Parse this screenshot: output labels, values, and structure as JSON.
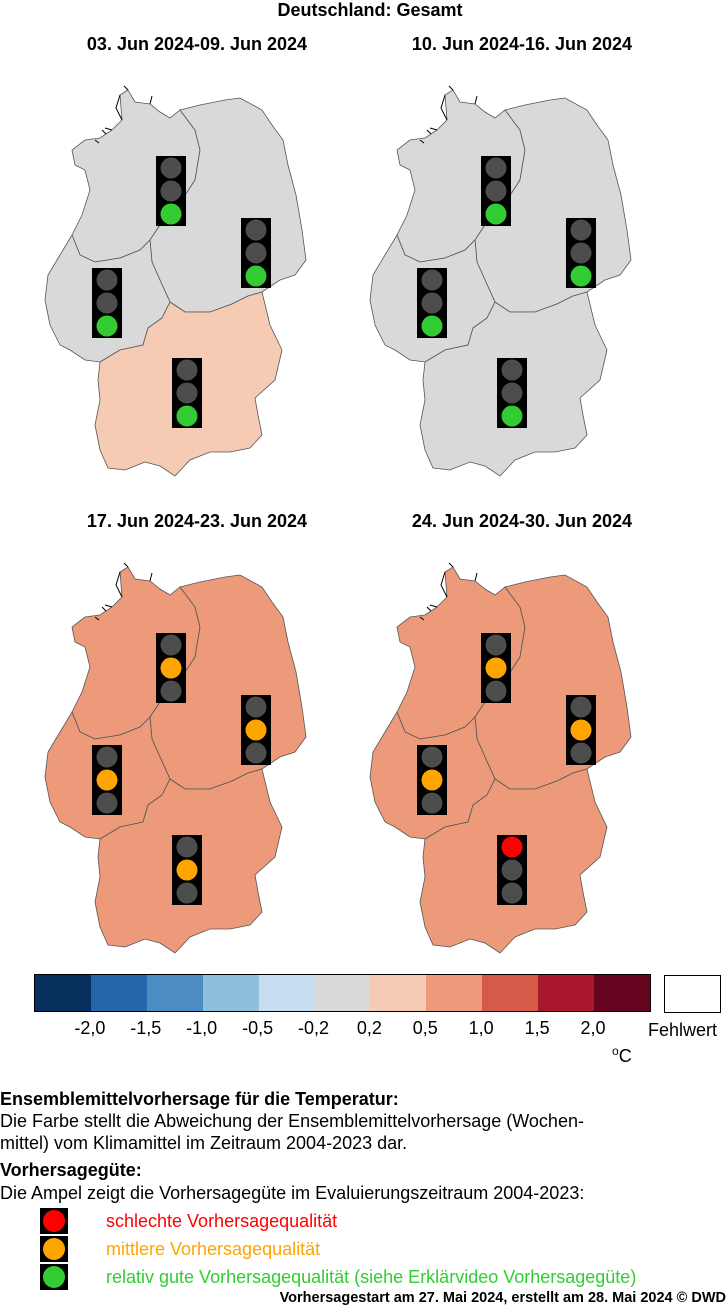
{
  "header": {
    "title": "Deutschland: Gesamt"
  },
  "panels": [
    {
      "period": "03. Jun 2024-09. Jun 2024",
      "regions": {
        "nw": "#d9d9d9",
        "ne": "#d9d9d9",
        "sw": "#d9d9d9",
        "s": "#f6cbb3"
      },
      "lights": {
        "nw": "green",
        "ne": "green",
        "sw": "green",
        "s": "green"
      }
    },
    {
      "period": "10. Jun 2024-16. Jun 2024",
      "regions": {
        "nw": "#d9d9d9",
        "ne": "#d9d9d9",
        "sw": "#d9d9d9",
        "s": "#d9d9d9"
      },
      "lights": {
        "nw": "green",
        "ne": "green",
        "sw": "green",
        "s": "green"
      }
    },
    {
      "period": "17. Jun 2024-23. Jun 2024",
      "regions": {
        "nw": "#ec9a7a",
        "ne": "#ec9a7a",
        "sw": "#ec9a7a",
        "s": "#ec9a7a"
      },
      "lights": {
        "nw": "orange",
        "ne": "orange",
        "sw": "orange",
        "s": "orange"
      }
    },
    {
      "period": "24. Jun 2024-30. Jun 2024",
      "regions": {
        "nw": "#ec9a7a",
        "ne": "#ec9a7a",
        "sw": "#ec9a7a",
        "s": "#ec9a7a"
      },
      "lights": {
        "nw": "orange",
        "ne": "orange",
        "sw": "orange",
        "s": "red"
      }
    }
  ],
  "legend": {
    "colors": [
      "#08305e",
      "#2465ab",
      "#4b8cc2",
      "#8fbfdb",
      "#c6def0",
      "#d9d9d9",
      "#f6cbb3",
      "#ec9a7a",
      "#d55a47",
      "#a9172d",
      "#660420"
    ],
    "ticks": [
      "-2,0",
      "-1,5",
      "-1,0",
      "-0,5",
      "-0,2",
      "0,2",
      "0,5",
      "1,0",
      "1,5",
      "2,0"
    ],
    "missing_label": "Fehlwert",
    "unit_sup": "o",
    "unit": "C"
  },
  "light_colors": {
    "red": "#ff0000",
    "orange": "#ffa500",
    "green": "#33cc33",
    "off": "#4d4d4d"
  },
  "description": {
    "heading1": "Ensemblemittelvorhersage für die Temperatur:",
    "line1": "Die Farbe stellt die Abweichung der Ensemblemittelvorhersage (Wochen-",
    "line2": "mittel) vom Klimamittel im Zeitraum 2004-2023 dar.",
    "heading2": "Vorhersagegüte:",
    "line3": "Die Ampel zeigt die Vorhersagegüte im Evaluierungszeitraum 2004-2023:"
  },
  "key": [
    {
      "label": "schlechte Vorhersagequalität",
      "color": "#ff0000"
    },
    {
      "label": "mittlere Vorhersagequalität",
      "color": "#ffa500"
    },
    {
      "label": "relativ gute Vorhersagequalität (siehe Erklärvideo Vorhersagegüte)",
      "color": "#33cc33"
    }
  ],
  "footer": "Vorhersagestart am 27. Mai 2024, erstellt am 28. Mai 2024 © DWD"
}
